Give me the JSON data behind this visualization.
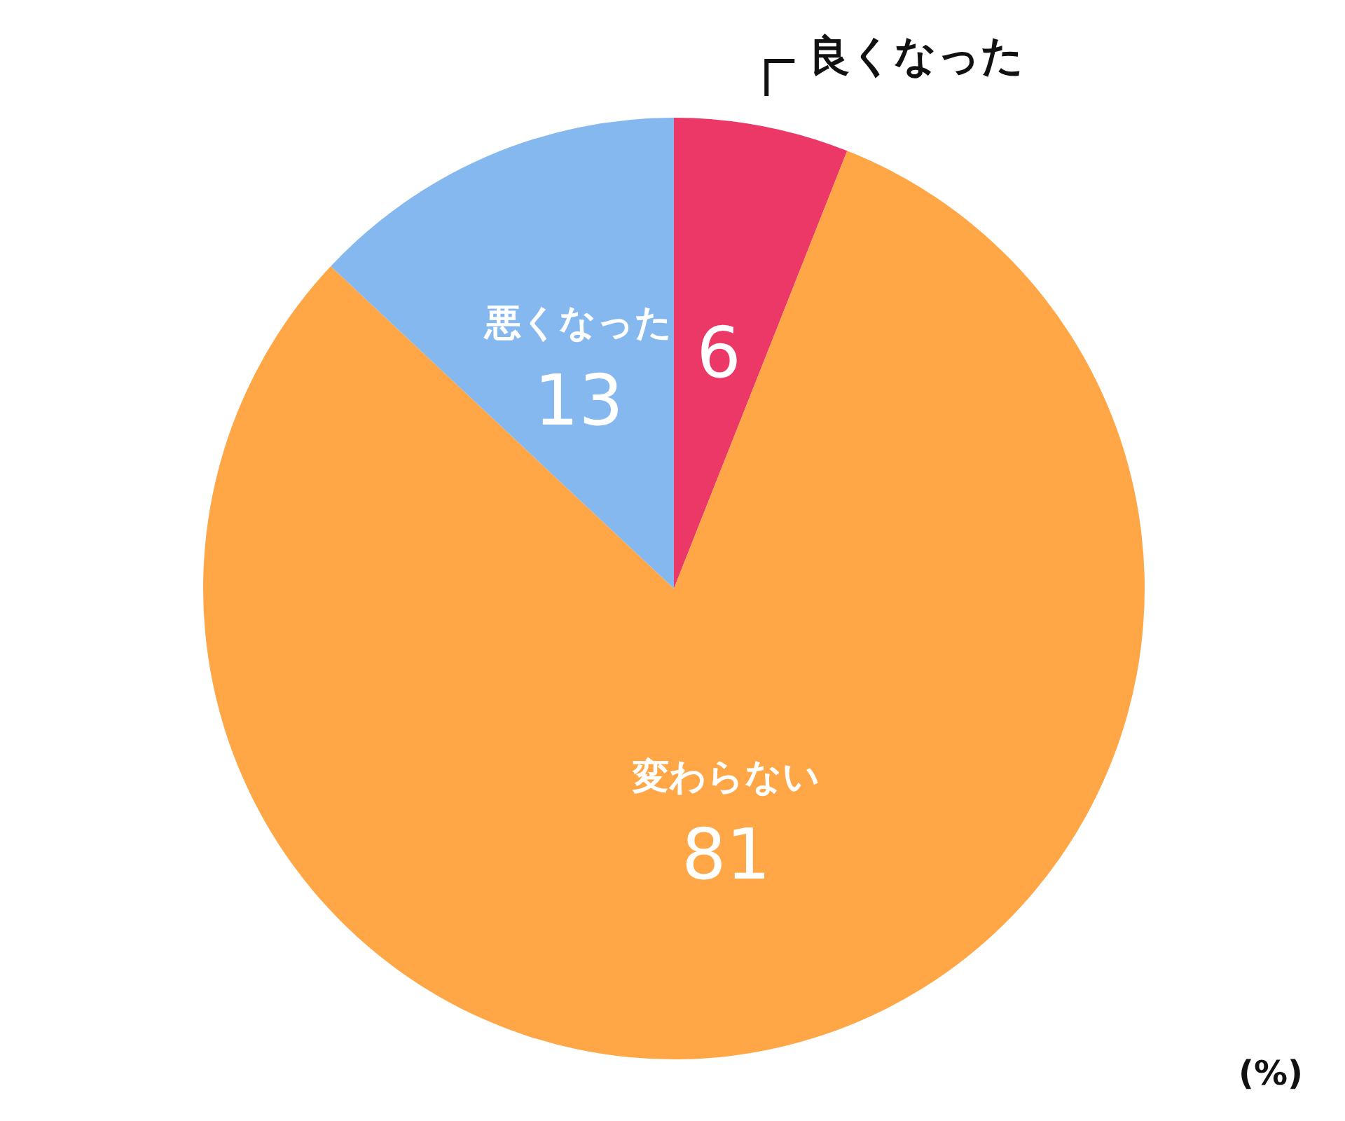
{
  "chart_data": {
    "type": "pie",
    "categories": [
      "良くなった",
      "変わらない",
      "悪くなった"
    ],
    "values": [
      6,
      81,
      13
    ],
    "colors": [
      "#ec3867",
      "#ffa646",
      "#86b8f0"
    ],
    "data_labels": true,
    "annotations": [
      "(%)"
    ]
  }
}
